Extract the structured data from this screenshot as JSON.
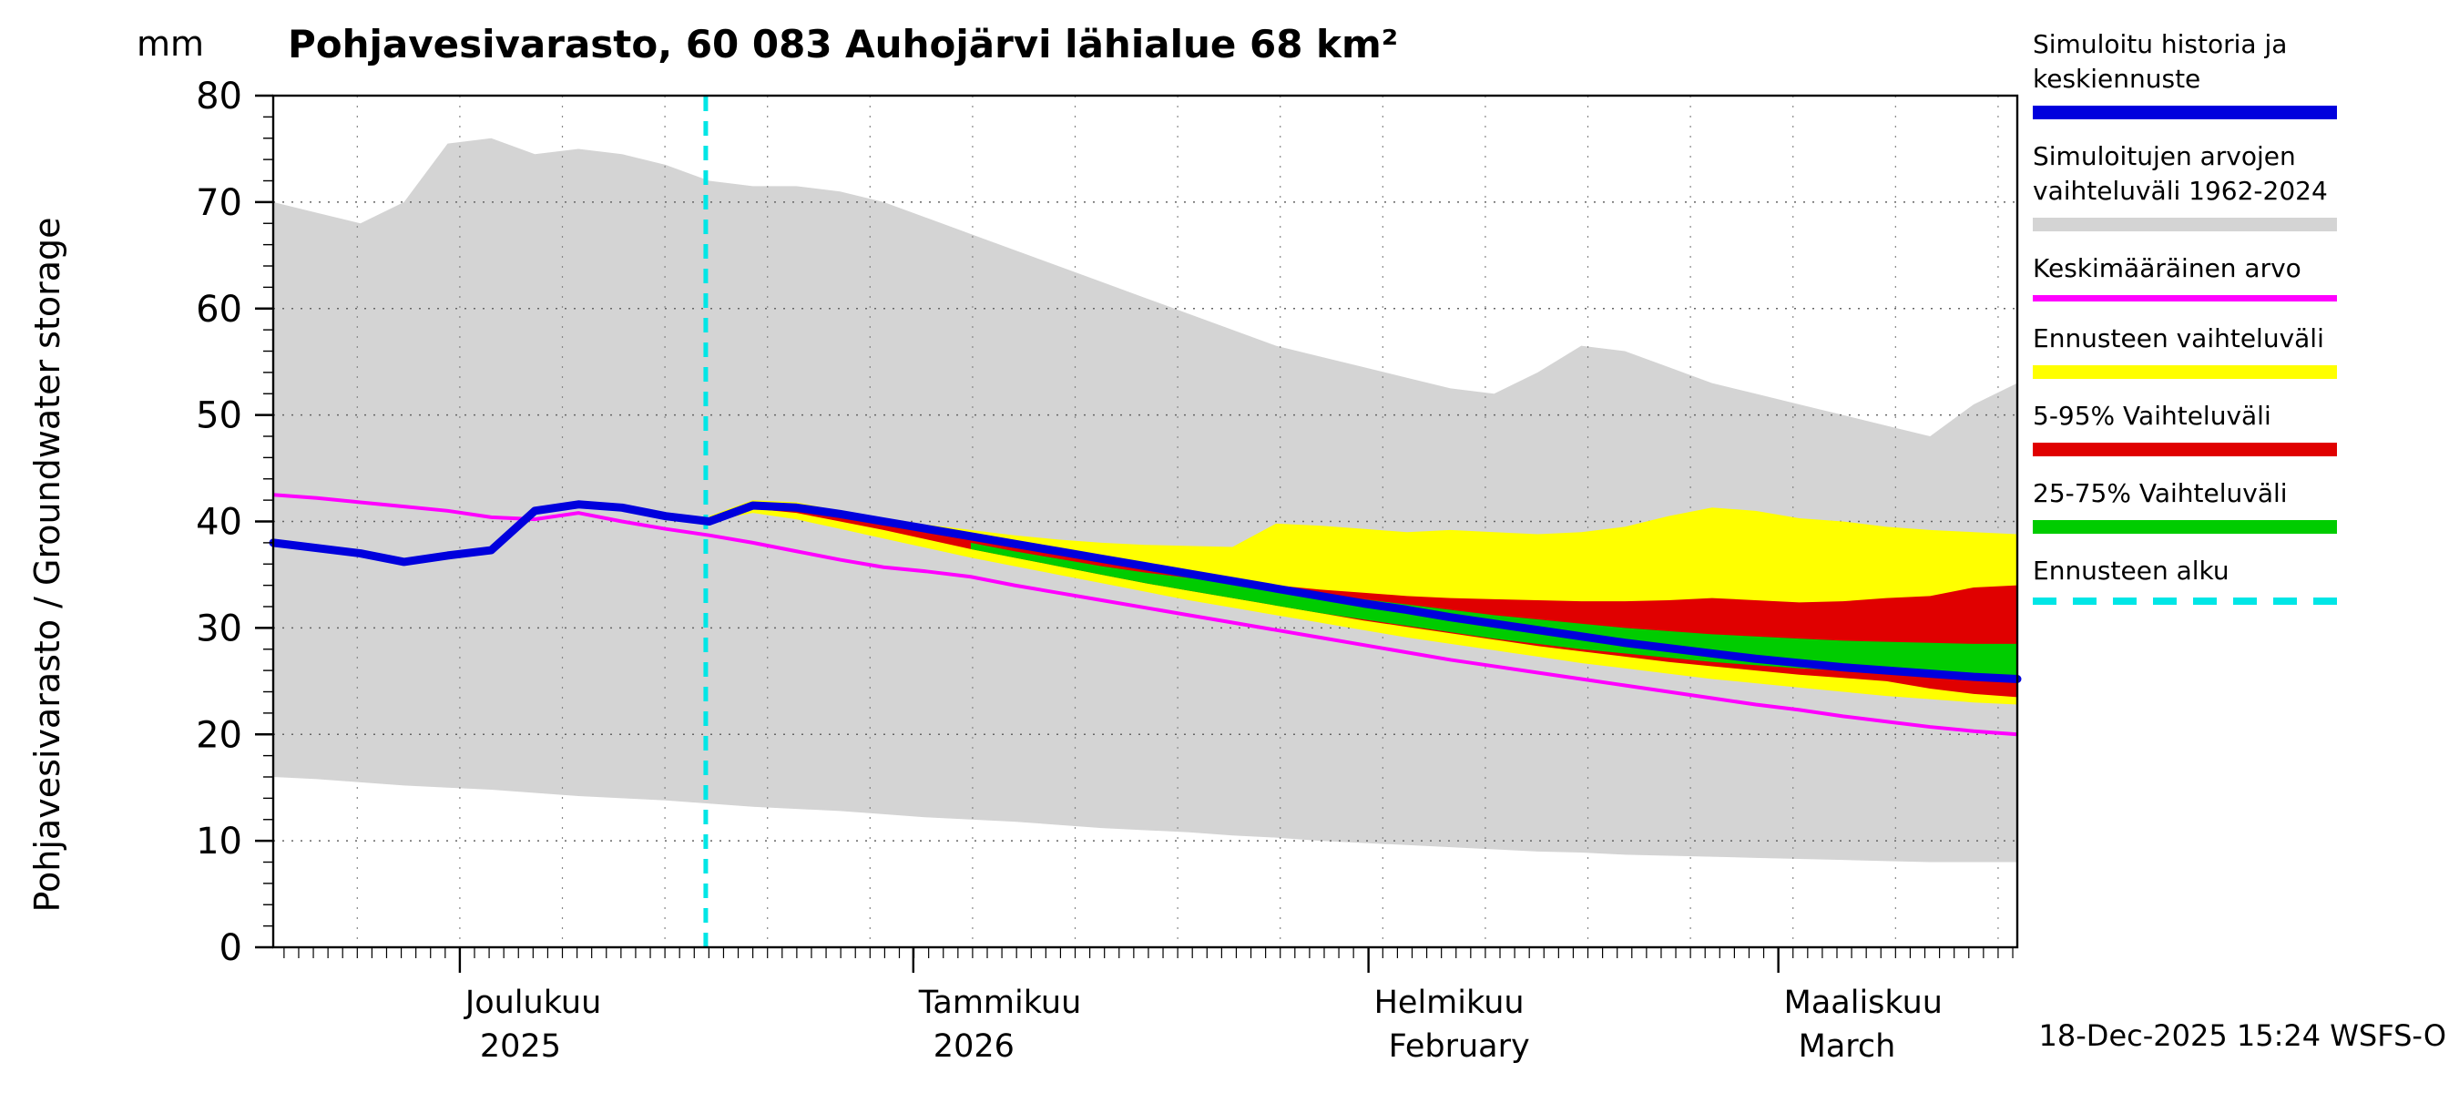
{
  "title": "Pohjavesivarasto, 60 083 Auhojärvi lähialue 68 km²",
  "y_axis": {
    "label": "Pohjavesivarasto / Groundwater storage",
    "unit": "mm"
  },
  "footer": {
    "timestamp": "18-Dec-2025 15:24 WSFS-O"
  },
  "legend": {
    "items": [
      {
        "name": "simulated-history-and-mean-forecast",
        "label": "Simuloitu historia ja keskiennuste",
        "color": "#0000dd",
        "style": "band"
      },
      {
        "name": "simulated-range-1962-2024",
        "label": "Simuloitujen arvojen vaihteluväli 1962-2024",
        "color": "#d4d4d4",
        "style": "band"
      },
      {
        "name": "mean-value",
        "label": "Keskimääräinen arvo",
        "color": "#ff00ff",
        "style": "line"
      },
      {
        "name": "forecast-range",
        "label": "Ennusteen vaihteluväli",
        "color": "#ffff00",
        "style": "band"
      },
      {
        "name": "range-5-95",
        "label": "5-95% Vaihteluväli",
        "color": "#e00000",
        "style": "band"
      },
      {
        "name": "range-25-75",
        "label": "25-75% Vaihteluväli",
        "color": "#00cc00",
        "style": "band"
      },
      {
        "name": "forecast-start",
        "label": "Ennusteen alku",
        "color": "#00e6e6",
        "style": "dashed"
      }
    ]
  },
  "chart_data": {
    "type": "area",
    "title": "Pohjavesivarasto, 60 083 Auhojärvi lähialue 68 km²",
    "ylabel": "Pohjavesivarasto / Groundwater storage (mm)",
    "xlabel": "",
    "ylim": [
      0,
      80
    ],
    "yticks": [
      0,
      10,
      20,
      30,
      40,
      50,
      60,
      70,
      80
    ],
    "grid": "dotted",
    "legend_position": "right-outside",
    "x_unit": "fraction of plotted period, Nov 2025 - Mar 2026",
    "forecast_start_frac": 0.248,
    "forecast_start_date": "18-Dec-2025",
    "forecast_start_color": "#00e6e6",
    "month_boundaries_frac": [
      0.107,
      0.367,
      0.628,
      0.863
    ],
    "month_labels": [
      {
        "fi": "Joulukuu",
        "sub": "2025",
        "frac": 0.107
      },
      {
        "fi": "Tammikuu",
        "sub": "2026",
        "frac": 0.367
      },
      {
        "fi": "Helmikuu",
        "sub": "February",
        "frac": 0.628
      },
      {
        "fi": "Maaliskuu",
        "sub": "March",
        "frac": 0.863
      }
    ],
    "bands": [
      {
        "name": "Simuloitujen arvojen vaihteluväli 1962-2024",
        "color": "#d4d4d4",
        "x": [
          0,
          0.025,
          0.05,
          0.075,
          0.1,
          0.125,
          0.15,
          0.175,
          0.2,
          0.225,
          0.25,
          0.275,
          0.3,
          0.325,
          0.35,
          0.375,
          0.4,
          0.425,
          0.45,
          0.475,
          0.5,
          0.525,
          0.55,
          0.575,
          0.6,
          0.625,
          0.65,
          0.675,
          0.7,
          0.725,
          0.75,
          0.775,
          0.8,
          0.825,
          0.85,
          0.875,
          0.9,
          0.925,
          0.95,
          0.975,
          1
        ],
        "upper": [
          70,
          69,
          68,
          70,
          75.5,
          76,
          74.5,
          75,
          74.5,
          73.5,
          72,
          71.5,
          71.5,
          71,
          70,
          68.5,
          67,
          65.5,
          64,
          62.5,
          61,
          59.5,
          58,
          56.5,
          55.5,
          54.5,
          53.5,
          52.5,
          52,
          54,
          56.5,
          56,
          54.5,
          53,
          52,
          51,
          50,
          49,
          48,
          51,
          53
        ],
        "lower": [
          16,
          15.8,
          15.5,
          15.2,
          15,
          14.8,
          14.5,
          14.2,
          14,
          13.8,
          13.5,
          13.2,
          13,
          12.8,
          12.5,
          12.2,
          12,
          11.8,
          11.5,
          11.2,
          11,
          10.8,
          10.5,
          10.3,
          10,
          9.8,
          9.6,
          9.4,
          9.2,
          9,
          8.9,
          8.7,
          8.6,
          8.5,
          8.4,
          8.3,
          8.2,
          8.1,
          8,
          8,
          8
        ]
      },
      {
        "name": "Ennusteen vaihteluväli",
        "color": "#ffff00",
        "x": [
          0.25,
          0.275,
          0.3,
          0.325,
          0.35,
          0.375,
          0.4,
          0.425,
          0.45,
          0.475,
          0.5,
          0.525,
          0.55,
          0.575,
          0.6,
          0.625,
          0.65,
          0.675,
          0.7,
          0.725,
          0.75,
          0.775,
          0.8,
          0.825,
          0.85,
          0.875,
          0.9,
          0.925,
          0.95,
          0.975,
          1
        ],
        "upper": [
          40.5,
          42,
          41.8,
          41,
          40.3,
          39.7,
          39.2,
          38.7,
          38.3,
          38,
          37.8,
          37.7,
          37.6,
          39.8,
          39.6,
          39.3,
          39,
          39.2,
          39,
          38.8,
          39,
          39.5,
          40.5,
          41.3,
          41,
          40.3,
          40,
          39.5,
          39.2,
          39,
          38.8
        ],
        "lower": [
          40,
          40.8,
          40.2,
          39.3,
          38.4,
          37.5,
          36.6,
          35.8,
          35,
          34.2,
          33.4,
          32.6,
          31.9,
          31.2,
          30.5,
          29.8,
          29.1,
          28.5,
          27.9,
          27.3,
          26.7,
          26.2,
          25.7,
          25.2,
          24.8,
          24.4,
          24,
          23.6,
          23.3,
          23,
          22.8
        ]
      },
      {
        "name": "5-95% Vaihteluväli",
        "color": "#e00000",
        "x": [
          0.25,
          0.275,
          0.3,
          0.325,
          0.35,
          0.375,
          0.4,
          0.425,
          0.45,
          0.475,
          0.5,
          0.525,
          0.55,
          0.575,
          0.6,
          0.625,
          0.65,
          0.675,
          0.7,
          0.725,
          0.75,
          0.775,
          0.8,
          0.825,
          0.85,
          0.875,
          0.9,
          0.925,
          0.95,
          0.975,
          1
        ],
        "upper": [
          40.3,
          41.8,
          41.5,
          40.8,
          40,
          39.2,
          38.4,
          37.6,
          36.9,
          36.2,
          35.5,
          34.9,
          34.4,
          34,
          33.6,
          33.3,
          33,
          32.8,
          32.7,
          32.6,
          32.5,
          32.5,
          32.6,
          32.8,
          32.6,
          32.4,
          32.5,
          32.8,
          33,
          33.8,
          34
        ],
        "lower": [
          40.2,
          41.2,
          40.8,
          40,
          39.2,
          38.3,
          37.4,
          36.6,
          35.8,
          35,
          34.2,
          33.5,
          32.8,
          32.1,
          31.4,
          30.7,
          30.1,
          29.5,
          28.9,
          28.3,
          27.8,
          27.3,
          26.8,
          26.4,
          26,
          25.6,
          25.3,
          25,
          24.3,
          23.8,
          23.5
        ]
      },
      {
        "name": "25-75% Vaihteluväli",
        "color": "#00cc00",
        "x": [
          0.4,
          0.425,
          0.45,
          0.475,
          0.5,
          0.525,
          0.55,
          0.575,
          0.6,
          0.625,
          0.65,
          0.675,
          0.7,
          0.725,
          0.75,
          0.775,
          0.8,
          0.825,
          0.85,
          0.875,
          0.9,
          0.925,
          0.95,
          0.975,
          1
        ],
        "upper": [
          38,
          37.2,
          36.5,
          35.8,
          35.2,
          34.7,
          34.2,
          33.7,
          33.2,
          32.7,
          32.2,
          31.7,
          31.2,
          30.8,
          30.4,
          30,
          29.7,
          29.4,
          29.2,
          29,
          28.8,
          28.7,
          28.6,
          28.5,
          28.5
        ],
        "lower": [
          37.4,
          36.6,
          35.8,
          35,
          34.2,
          33.5,
          32.8,
          32.1,
          31.4,
          30.8,
          30.2,
          29.6,
          29,
          28.5,
          28,
          27.6,
          27.2,
          26.8,
          26.5,
          26.2,
          26,
          25.8,
          25.7,
          25.6,
          25.5
        ]
      }
    ],
    "lines": [
      {
        "name": "Keskimääräinen arvo",
        "color": "#ff00ff",
        "width": 4,
        "x": [
          0,
          0.025,
          0.05,
          0.075,
          0.1,
          0.125,
          0.15,
          0.175,
          0.2,
          0.225,
          0.25,
          0.275,
          0.3,
          0.325,
          0.35,
          0.375,
          0.4,
          0.425,
          0.45,
          0.475,
          0.5,
          0.525,
          0.55,
          0.575,
          0.6,
          0.625,
          0.65,
          0.675,
          0.7,
          0.725,
          0.75,
          0.775,
          0.8,
          0.825,
          0.85,
          0.875,
          0.9,
          0.925,
          0.95,
          0.975,
          1
        ],
        "y": [
          42.5,
          42.2,
          41.8,
          41.4,
          41,
          40.4,
          40.2,
          40.8,
          40,
          39.3,
          38.7,
          38,
          37.2,
          36.4,
          35.7,
          35.3,
          34.8,
          34,
          33.3,
          32.6,
          31.9,
          31.2,
          30.5,
          29.8,
          29.1,
          28.4,
          27.7,
          27,
          26.4,
          25.8,
          25.2,
          24.6,
          24,
          23.4,
          22.8,
          22.3,
          21.7,
          21.2,
          20.7,
          20.3,
          20
        ]
      },
      {
        "name": "Simuloitu historia ja keskiennuste",
        "color": "#0000dd",
        "width": 9,
        "x": [
          0,
          0.025,
          0.05,
          0.075,
          0.1,
          0.125,
          0.15,
          0.175,
          0.2,
          0.225,
          0.25,
          0.275,
          0.3,
          0.325,
          0.35,
          0.375,
          0.4,
          0.425,
          0.45,
          0.475,
          0.5,
          0.525,
          0.55,
          0.575,
          0.6,
          0.625,
          0.65,
          0.675,
          0.7,
          0.725,
          0.75,
          0.775,
          0.8,
          0.825,
          0.85,
          0.875,
          0.9,
          0.925,
          0.95,
          0.975,
          1
        ],
        "y": [
          38,
          37.5,
          37,
          36.2,
          36.8,
          37.3,
          41,
          41.6,
          41.3,
          40.5,
          40,
          41.5,
          41.3,
          40.7,
          40,
          39.3,
          38.6,
          37.9,
          37.2,
          36.5,
          35.8,
          35.1,
          34.4,
          33.7,
          33,
          32.3,
          31.7,
          31,
          30.4,
          29.8,
          29.2,
          28.6,
          28.1,
          27.6,
          27.1,
          26.7,
          26.3,
          26,
          25.7,
          25.4,
          25.2
        ]
      }
    ]
  }
}
